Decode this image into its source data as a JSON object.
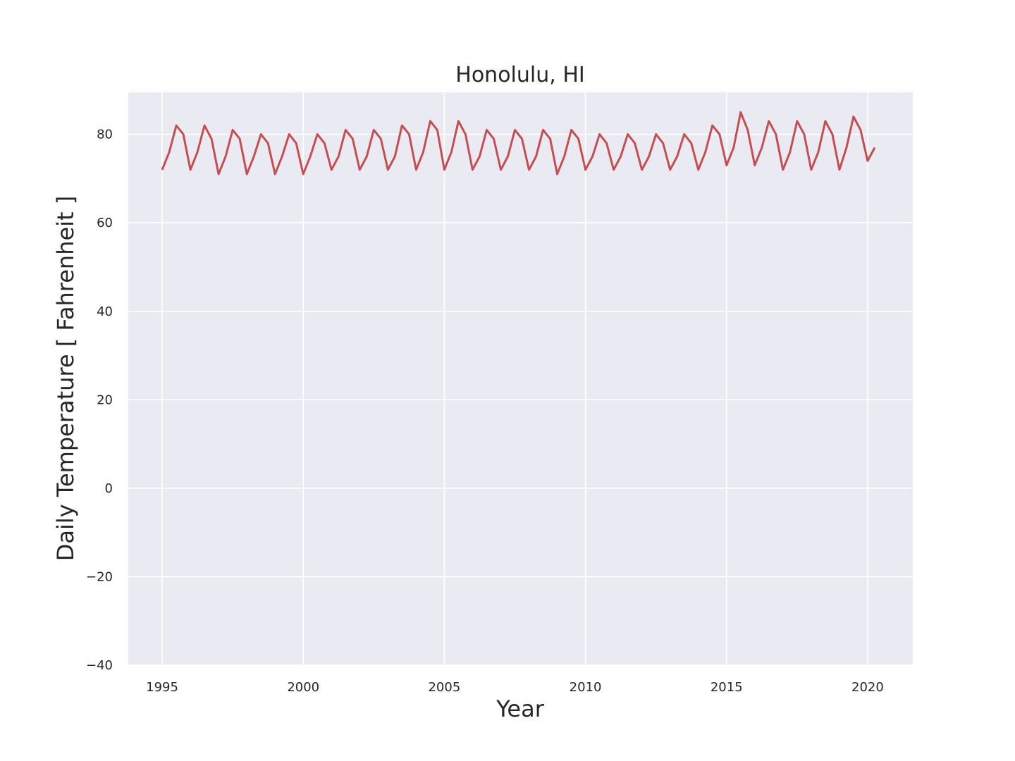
{
  "chart_data": {
    "type": "line",
    "title": "Honolulu, HI",
    "xlabel": "Year",
    "ylabel": "Daily Temperature [ Fahrenheit ]",
    "xlim": [
      1993.8,
      2021.6
    ],
    "ylim": [
      -40,
      89.5
    ],
    "x_ticks": [
      "1995",
      "2000",
      "2005",
      "2010",
      "2015",
      "2020"
    ],
    "y_ticks": [
      "−40",
      "−20",
      "0",
      "20",
      "40",
      "60",
      "80"
    ],
    "grid": true,
    "legend": "none",
    "colors": {
      "line": "#c44e52",
      "plot_bg": "#eaeaf2",
      "grid": "#ffffff"
    },
    "series": [
      {
        "x": [
          1995.0,
          1995.25,
          1995.5,
          1995.75,
          1996.0,
          1996.25,
          1996.5,
          1996.75,
          1997.0,
          1997.25,
          1997.5,
          1997.75,
          1998.0,
          1998.25,
          1998.5,
          1998.75,
          1999.0,
          1999.25,
          1999.5,
          1999.75,
          2000.0,
          2000.25,
          2000.5,
          2000.75,
          2001.0,
          2001.25,
          2001.5,
          2001.75,
          2002.0,
          2002.25,
          2002.5,
          2002.75,
          2003.0,
          2003.25,
          2003.5,
          2003.75,
          2004.0,
          2004.25,
          2004.5,
          2004.75,
          2005.0,
          2005.25,
          2005.5,
          2005.75,
          2006.0,
          2006.25,
          2006.5,
          2006.75,
          2007.0,
          2007.25,
          2007.5,
          2007.75,
          2008.0,
          2008.25,
          2008.5,
          2008.75,
          2009.0,
          2009.25,
          2009.5,
          2009.75,
          2010.0,
          2010.25,
          2010.5,
          2010.75,
          2011.0,
          2011.25,
          2011.5,
          2011.75,
          2012.0,
          2012.25,
          2012.5,
          2012.75,
          2013.0,
          2013.25,
          2013.5,
          2013.75,
          2014.0,
          2014.25,
          2014.5,
          2014.75,
          2015.0,
          2015.25,
          2015.5,
          2015.75,
          2016.0,
          2016.25,
          2016.5,
          2016.75,
          2017.0,
          2017.25,
          2017.5,
          2017.75,
          2018.0,
          2018.25,
          2018.5,
          2018.75,
          2019.0,
          2019.25,
          2019.5,
          2019.75,
          2020.0,
          2020.25
        ],
        "y": [
          72,
          76,
          82,
          80,
          72,
          76,
          82,
          79,
          71,
          75,
          81,
          79,
          71,
          75,
          80,
          78,
          71,
          75,
          80,
          78,
          71,
          75,
          80,
          78,
          72,
          75,
          81,
          79,
          72,
          75,
          81,
          79,
          72,
          75,
          82,
          80,
          72,
          76,
          83,
          81,
          72,
          76,
          83,
          80,
          72,
          75,
          81,
          79,
          72,
          75,
          81,
          79,
          72,
          75,
          81,
          79,
          71,
          75,
          81,
          79,
          72,
          75,
          80,
          78,
          72,
          75,
          80,
          78,
          72,
          75,
          80,
          78,
          72,
          75,
          80,
          78,
          72,
          76,
          82,
          80,
          73,
          77,
          85,
          81,
          73,
          77,
          83,
          80,
          72,
          76,
          83,
          80,
          72,
          76,
          83,
          80,
          72,
          77,
          84,
          81,
          74,
          77
        ]
      }
    ]
  }
}
